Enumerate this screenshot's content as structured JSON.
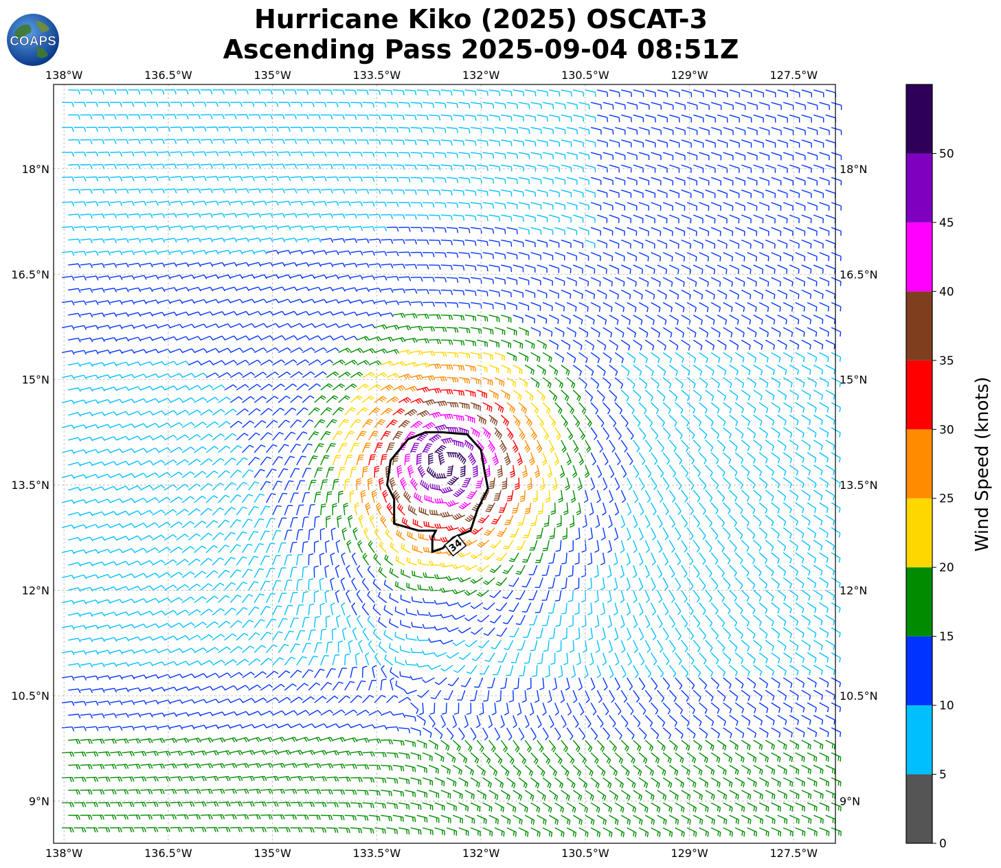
{
  "title": {
    "line1": "Hurricane Kiko (2025) OSCAT-3",
    "line2": "Ascending Pass 2025-09-04 08:51Z"
  },
  "logo": {
    "text": "COAPS"
  },
  "map": {
    "lon_range": [
      -138.15,
      -126.9
    ],
    "lat_range": [
      8.4,
      19.2
    ],
    "lon_ticks": [
      {
        "value": -138.0,
        "label": "138°W"
      },
      {
        "value": -136.5,
        "label": "136.5°W"
      },
      {
        "value": -135.0,
        "label": "135°W"
      },
      {
        "value": -133.5,
        "label": "133.5°W"
      },
      {
        "value": -132.0,
        "label": "132°W"
      },
      {
        "value": -130.5,
        "label": "130.5°W"
      },
      {
        "value": -129.0,
        "label": "129°W"
      },
      {
        "value": -127.5,
        "label": "127.5°W"
      }
    ],
    "lat_ticks": [
      {
        "value": 9.0,
        "label": "9°N"
      },
      {
        "value": 10.5,
        "label": "10.5°N"
      },
      {
        "value": 12.0,
        "label": "12°N"
      },
      {
        "value": 13.5,
        "label": "13.5°N"
      },
      {
        "value": 15.0,
        "label": "15°N"
      },
      {
        "value": 16.5,
        "label": "16.5°N"
      },
      {
        "value": 18.0,
        "label": "18°N"
      }
    ],
    "gridlines": true,
    "storm_center": {
      "lon": -132.5,
      "lat": 13.8
    },
    "contour_label": "34"
  },
  "colorbar": {
    "label": "Wind Speed (knots)",
    "bins": [
      {
        "min": 0,
        "max": 5,
        "color": "#555555"
      },
      {
        "min": 5,
        "max": 10,
        "color": "#00bfff"
      },
      {
        "min": 10,
        "max": 15,
        "color": "#0033ff"
      },
      {
        "min": 15,
        "max": 20,
        "color": "#008c00"
      },
      {
        "min": 20,
        "max": 25,
        "color": "#ffd700"
      },
      {
        "min": 25,
        "max": 30,
        "color": "#ff8c00"
      },
      {
        "min": 30,
        "max": 35,
        "color": "#ff0000"
      },
      {
        "min": 35,
        "max": 40,
        "color": "#7f3f1f"
      },
      {
        "min": 40,
        "max": 45,
        "color": "#ff00ff"
      },
      {
        "min": 45,
        "max": 50,
        "color": "#8000c0"
      },
      {
        "min": 50,
        "max": 55,
        "color": "#2e0059"
      }
    ],
    "ticks": [
      "0",
      "5",
      "10",
      "15",
      "20",
      "25",
      "30",
      "35",
      "40",
      "45",
      "50"
    ]
  },
  "colors": {
    "contour": "#000000",
    "grid": "#b0b0b0"
  }
}
